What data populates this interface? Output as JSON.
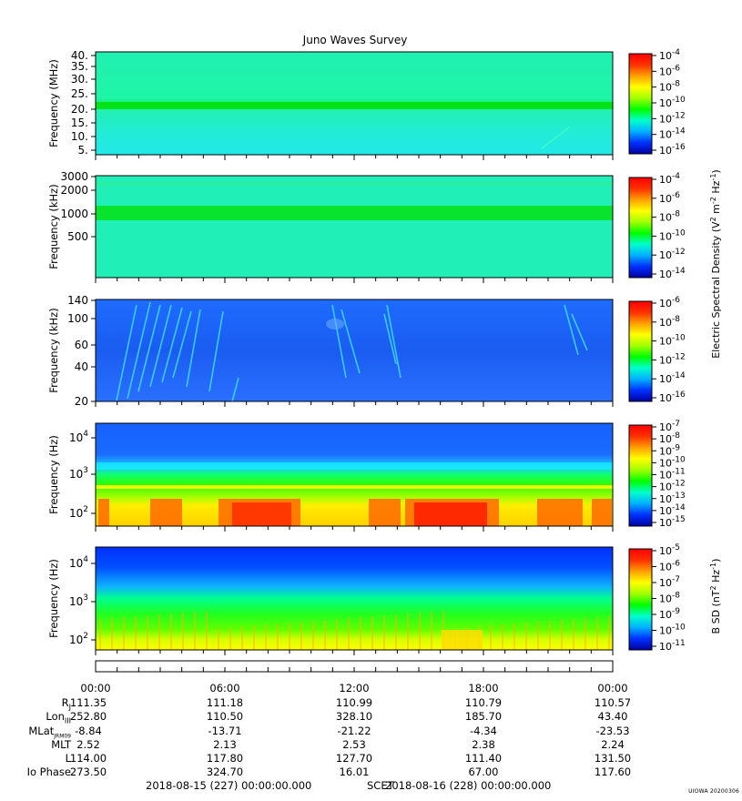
{
  "title": "Juno Waves Survey",
  "colors": {
    "stops": [
      "#0000a0",
      "#0030ff",
      "#00b0ff",
      "#00ffcc",
      "#00ff00",
      "#a0ff00",
      "#ffff00",
      "#ffa000",
      "#ff3000",
      "#ff0000"
    ]
  },
  "panels": [
    {
      "id": "p1",
      "ylabel": "Frequency (MHz)",
      "yticks": [
        "40.",
        "35.",
        "30.",
        "25.",
        "20.",
        "15.",
        "10.",
        "5."
      ],
      "cbar_labels": [
        {
          "base": "10",
          "exp": "-4"
        },
        {
          "base": "10",
          "exp": "-6"
        },
        {
          "base": "10",
          "exp": "-8"
        },
        {
          "base": "10",
          "exp": "-10"
        },
        {
          "base": "10",
          "exp": "-12"
        },
        {
          "base": "10",
          "exp": "-14"
        },
        {
          "base": "10",
          "exp": "-16"
        }
      ]
    },
    {
      "id": "p2",
      "ylabel": "Frequency (kHz)",
      "yticks": [
        "3000",
        "2000",
        "1000",
        "500"
      ],
      "cbar_labels": [
        {
          "base": "10",
          "exp": "-4"
        },
        {
          "base": "10",
          "exp": "-6"
        },
        {
          "base": "10",
          "exp": "-8"
        },
        {
          "base": "10",
          "exp": "-10"
        },
        {
          "base": "10",
          "exp": "-12"
        },
        {
          "base": "10",
          "exp": "-14"
        }
      ]
    },
    {
      "id": "p3",
      "ylabel": "Frequency (kHz)",
      "yticks": [
        "140",
        "100",
        "60",
        "40",
        "20"
      ],
      "cbar_labels": [
        {
          "base": "10",
          "exp": "-6"
        },
        {
          "base": "10",
          "exp": "-8"
        },
        {
          "base": "10",
          "exp": "-10"
        },
        {
          "base": "10",
          "exp": "-12"
        },
        {
          "base": "10",
          "exp": "-14"
        },
        {
          "base": "10",
          "exp": "-16"
        }
      ]
    },
    {
      "id": "p4",
      "ylabel": "Frequency (Hz)",
      "yticks": [
        {
          "base": "10",
          "exp": "4"
        },
        {
          "base": "10",
          "exp": "3"
        },
        {
          "base": "10",
          "exp": "2"
        }
      ],
      "cbar_labels": [
        {
          "base": "10",
          "exp": "-7"
        },
        {
          "base": "10",
          "exp": "-8"
        },
        {
          "base": "10",
          "exp": "-9"
        },
        {
          "base": "10",
          "exp": "-10"
        },
        {
          "base": "10",
          "exp": "-11"
        },
        {
          "base": "10",
          "exp": "-12"
        },
        {
          "base": "10",
          "exp": "-13"
        },
        {
          "base": "10",
          "exp": "-14"
        },
        {
          "base": "10",
          "exp": "-15"
        }
      ]
    },
    {
      "id": "p5",
      "ylabel": "Frequency (Hz)",
      "yticks": [
        {
          "base": "10",
          "exp": "4"
        },
        {
          "base": "10",
          "exp": "3"
        },
        {
          "base": "10",
          "exp": "2"
        }
      ],
      "cbar_labels": [
        {
          "base": "10",
          "exp": "-5"
        },
        {
          "base": "10",
          "exp": "-6"
        },
        {
          "base": "10",
          "exp": "-7"
        },
        {
          "base": "10",
          "exp": "-8"
        },
        {
          "base": "10",
          "exp": "-9"
        },
        {
          "base": "10",
          "exp": "-10"
        },
        {
          "base": "10",
          "exp": "-11"
        }
      ]
    }
  ],
  "cbar_title_e": {
    "pre": "Electric Spectral Density (V",
    "mid": " m",
    "mid2": " Hz",
    "post": ")",
    "e1": "2",
    "e2": "-2",
    "e3": "-1"
  },
  "cbar_title_b": {
    "pre": "B SD (nT",
    "mid": " Hz",
    "post": ")",
    "e1": "2",
    "e2": "-1"
  },
  "time_ticks": [
    "00:00",
    "06:00",
    "12:00",
    "18:00",
    "00:00"
  ],
  "ephemeris": [
    {
      "label": "R",
      "sub": "J",
      "values": [
        "111.35",
        "111.18",
        "110.99",
        "110.79",
        "110.57"
      ]
    },
    {
      "label": "Lon",
      "sub": "III",
      "values": [
        "252.80",
        "110.50",
        "328.10",
        "185.70",
        "43.40"
      ]
    },
    {
      "label": "MLat",
      "sub": "JRM09",
      "values": [
        "-8.84",
        "-13.71",
        "-21.22",
        "-4.34",
        "-23.53"
      ]
    },
    {
      "label": "MLT",
      "sub": "",
      "values": [
        "2.52",
        "2.13",
        "2.53",
        "2.38",
        "2.24"
      ]
    },
    {
      "label": "L",
      "sub": "",
      "values": [
        "114.00",
        "117.80",
        "127.70",
        "111.40",
        "131.50"
      ]
    },
    {
      "label": "Io Phase",
      "sub": "",
      "values": [
        "273.50",
        "324.70",
        "16.01",
        "67.00",
        "117.60"
      ]
    }
  ],
  "footer": {
    "start": "2018-08-15 (227) 00:00:00.000",
    "mid": "SCET",
    "end": "2018-08-16 (228) 00:00:00.000"
  },
  "credit": "UIOWA 20200306",
  "chart_data": {
    "type": "heatmap",
    "title": "Juno Waves Survey",
    "x_range": [
      "2018-08-15 00:00",
      "2018-08-16 00:00"
    ],
    "panels": [
      {
        "ylabel": "Frequency (MHz)",
        "ylim": [
          3,
          41
        ],
        "zlim_exp": [
          -17,
          -4
        ],
        "z_label": "Electric Spectral Density (V2 m-2 Hz-1)"
      },
      {
        "ylabel": "Frequency (kHz)",
        "ylim": [
          140,
          3000
        ],
        "yscale": "log",
        "zlim_exp": [
          -15,
          -4
        ],
        "z_label": "Electric Spectral Density (V2 m-2 Hz-1)"
      },
      {
        "ylabel": "Frequency (kHz)",
        "ylim": [
          20,
          140
        ],
        "yscale": "log",
        "zlim_exp": [
          -16,
          -6
        ],
        "z_label": "Electric Spectral Density (V2 m-2 Hz-1)"
      },
      {
        "ylabel": "Frequency (Hz)",
        "ylim": [
          50,
          20000
        ],
        "yscale": "log",
        "zlim_exp": [
          -15,
          -7
        ],
        "z_label": "Electric Spectral Density (V2 m-2 Hz-1)"
      },
      {
        "ylabel": "Frequency (Hz)",
        "ylim": [
          50,
          20000
        ],
        "yscale": "log",
        "zlim_exp": [
          -11,
          -5
        ],
        "z_label": "B SD (nT2 Hz-1)"
      }
    ]
  }
}
